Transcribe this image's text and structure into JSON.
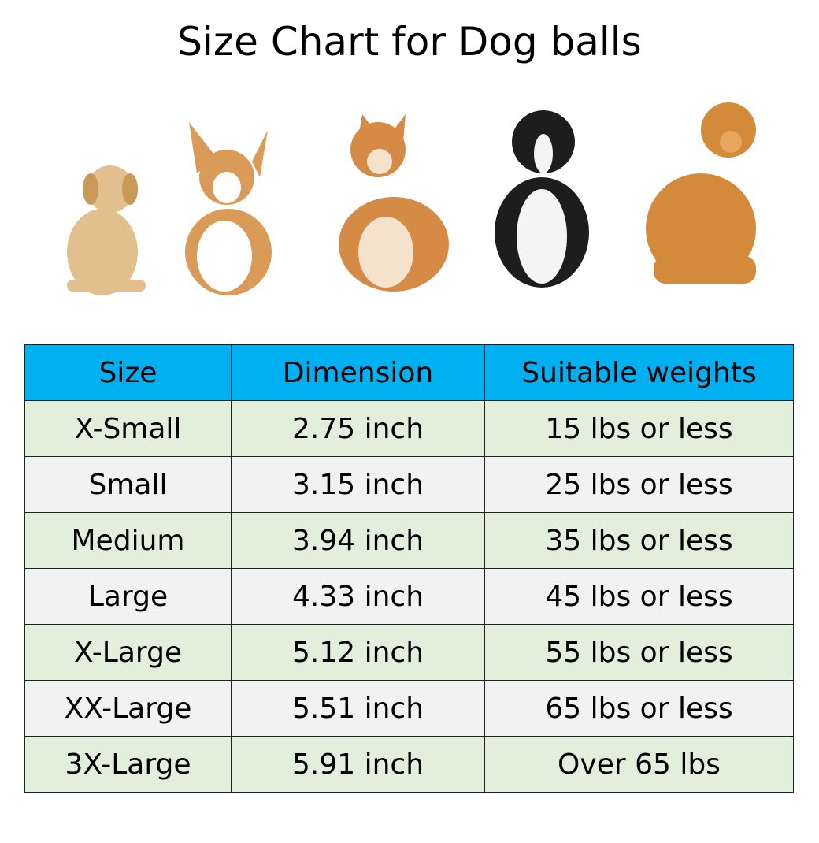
{
  "header": {
    "title": "Size Chart for Dog balls"
  },
  "table": {
    "columns": [
      "Size",
      "Dimension",
      "Suitable weights"
    ],
    "rows": [
      [
        "X-Small",
        "2.75 inch",
        "15 lbs or less"
      ],
      [
        "Small",
        "3.15 inch",
        "25 lbs or less"
      ],
      [
        "Medium",
        "3.94 inch",
        "35 lbs or less"
      ],
      [
        "Large",
        "4.33 inch",
        "45 lbs or less"
      ],
      [
        "X-Large",
        "5.12 inch",
        "55 lbs or less"
      ],
      [
        "XX-Large",
        "5.51 inch",
        "65 lbs or less"
      ],
      [
        "3X-Large",
        "5.91 inch",
        "Over 65 lbs"
      ]
    ]
  }
}
